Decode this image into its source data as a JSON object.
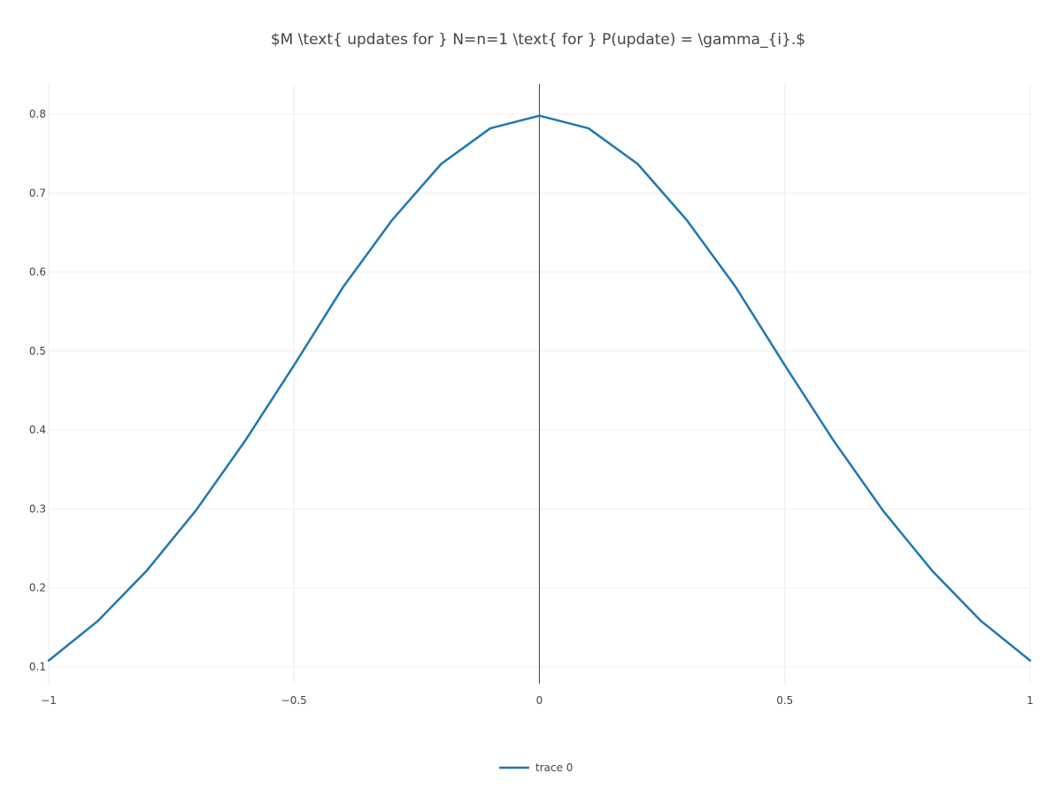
{
  "chart_data": {
    "type": "line",
    "title": "$M \\text{ updates for } N=n=1 \\text{ for } P(update) = \\gamma_{i}.$",
    "xlabel": "",
    "ylabel": "",
    "xlim": [
      -1,
      1
    ],
    "ylim": [
      0.1,
      0.8
    ],
    "x_ticks": [
      -1,
      -0.5,
      0,
      0.5,
      1
    ],
    "x_tick_labels": [
      "−1",
      "−0.5",
      "0",
      "0.5",
      "1"
    ],
    "y_ticks": [
      0.1,
      0.2,
      0.3,
      0.4,
      0.5,
      0.6,
      0.7,
      0.8
    ],
    "y_tick_labels": [
      "0.1",
      "0.2",
      "0.3",
      "0.4",
      "0.5",
      "0.6",
      "0.7",
      "0.8"
    ],
    "grid": true,
    "legend_position": "bottom-center",
    "series": [
      {
        "name": "trace 0",
        "color": "#1f77b4",
        "x": [
          -1,
          -0.9,
          -0.8,
          -0.7,
          -0.6,
          -0.5,
          -0.4,
          -0.3,
          -0.2,
          -0.1,
          0,
          0.1,
          0.2,
          0.3,
          0.4,
          0.5,
          0.6,
          0.7,
          0.8,
          0.9,
          1
        ],
        "y": [
          0.108,
          0.158,
          0.222,
          0.298,
          0.386,
          0.482,
          0.581,
          0.666,
          0.737,
          0.782,
          0.798,
          0.782,
          0.737,
          0.666,
          0.581,
          0.482,
          0.386,
          0.298,
          0.222,
          0.158,
          0.108
        ]
      }
    ]
  }
}
